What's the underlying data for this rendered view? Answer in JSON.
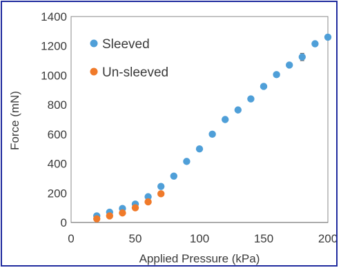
{
  "chart_data": {
    "type": "scatter",
    "xlabel": "Applied Pressure (kPa)",
    "ylabel": "Force (mN)",
    "xlim": [
      0,
      200
    ],
    "ylim": [
      0,
      1400
    ],
    "xticks": [
      0,
      50,
      100,
      150,
      200
    ],
    "yticks": [
      0,
      200,
      400,
      600,
      800,
      1000,
      1200,
      1400
    ],
    "grid": false,
    "legend_position": "top-left",
    "series": [
      {
        "name": "Sleeved",
        "color": "#4f9fd8",
        "x": [
          20,
          30,
          40,
          50,
          60,
          70,
          80,
          90,
          100,
          110,
          120,
          130,
          140,
          150,
          160,
          170,
          180,
          190,
          200
        ],
        "y": [
          45,
          70,
          95,
          125,
          175,
          245,
          315,
          415,
          500,
          600,
          700,
          765,
          840,
          925,
          1005,
          1070,
          1125,
          1215,
          1260
        ],
        "error": [
          8,
          8,
          8,
          10,
          10,
          12,
          12,
          12,
          12,
          12,
          14,
          14,
          14,
          14,
          14,
          16,
          25,
          14,
          14
        ]
      },
      {
        "name": "Un-sleeved",
        "color": "#f07a2a",
        "x": [
          20,
          30,
          40,
          50,
          60,
          70
        ],
        "y": [
          25,
          45,
          65,
          100,
          140,
          195
        ],
        "error": [
          6,
          6,
          8,
          8,
          8,
          10
        ]
      }
    ]
  }
}
